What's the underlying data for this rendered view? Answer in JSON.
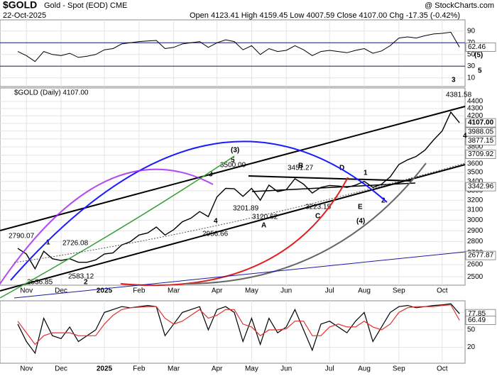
{
  "header": {
    "symbol": "$GOLD",
    "name": "Gold - Spot (EOD) CME",
    "date": "22-Oct-2025",
    "quote": "Open 4123.41 High 4159.45 Low 4007.59 Close 4107.00 Chg -17.35 (-0.42%)",
    "source": "@ StockCharts.com"
  },
  "chart_data": [
    {
      "type": "line",
      "color": "#000000",
      "categories": [
        null,
        "Nov",
        null,
        null,
        null,
        "Dec",
        null,
        null,
        null,
        null,
        "2025",
        null,
        null,
        null,
        "Feb",
        null,
        null,
        null,
        "Mar",
        null,
        null,
        null,
        null,
        "Apr",
        null,
        null,
        null,
        "May",
        null,
        null,
        null,
        "Jun",
        null,
        null,
        null,
        null,
        "Jul",
        null,
        null,
        null,
        "Aug",
        null,
        null,
        null,
        "Sep",
        null,
        null,
        null,
        null,
        "Oct",
        null,
        null
      ],
      "values": [
        55,
        48,
        38,
        55,
        50,
        48,
        52,
        45,
        47,
        50,
        58,
        60,
        68,
        70,
        72,
        73,
        74,
        60,
        62,
        68,
        70,
        72,
        62,
        70,
        75,
        72,
        58,
        65,
        50,
        60,
        55,
        57,
        65,
        58,
        48,
        55,
        57,
        55,
        53,
        57,
        60,
        52,
        56,
        65,
        78,
        80,
        78,
        82,
        85,
        86,
        88,
        62.46
      ],
      "value_labels": [
        null,
        null,
        null,
        null,
        null,
        null,
        null,
        null,
        null,
        null,
        null,
        null,
        null,
        null,
        null,
        null,
        null,
        null,
        null,
        null,
        null,
        null,
        null,
        null,
        null,
        null,
        null,
        null,
        null,
        null,
        null,
        null,
        null,
        null,
        null,
        null,
        null,
        null,
        null,
        null,
        null,
        null,
        null,
        null,
        null,
        null,
        null,
        null,
        null,
        null,
        null,
        "62.46"
      ],
      "ylim": [
        0,
        100
      ],
      "yticks": [
        10,
        30,
        50,
        70,
        90
      ]
    },
    {
      "type": "line",
      "color": "#000000",
      "log": true,
      "legend": "$GOLD (Daily) 4107.00",
      "categories": [
        null,
        "Nov",
        null,
        null,
        null,
        "Dec",
        null,
        null,
        null,
        null,
        "2025",
        null,
        null,
        null,
        "Feb",
        null,
        null,
        null,
        "Mar",
        null,
        null,
        null,
        null,
        "Apr",
        null,
        null,
        null,
        "May",
        null,
        null,
        null,
        "Jun",
        null,
        null,
        null,
        null,
        "Jul",
        null,
        null,
        null,
        "Aug",
        null,
        null,
        null,
        "Sep",
        null,
        null,
        null,
        null,
        "Oct",
        null,
        null
      ],
      "values": [
        2740,
        2690,
        2565,
        2715,
        2650,
        2635,
        2650,
        2620,
        2620,
        2640,
        2690,
        2700,
        2770,
        2800,
        2860,
        2880,
        2935,
        2860,
        2910,
        2985,
        3020,
        3085,
        3035,
        3235,
        3325,
        3320,
        3240,
        3325,
        3200,
        3360,
        3290,
        3310,
        3430,
        3370,
        3275,
        3335,
        3355,
        3350,
        3335,
        3360,
        3400,
        3335,
        3370,
        3450,
        3590,
        3645,
        3685,
        3760,
        3885,
        4000,
        4250,
        4107
      ],
      "ylim": [
        2450,
        4450
      ],
      "yticks": [
        2500,
        2600,
        2700,
        2800,
        2900,
        3000,
        3100,
        3200,
        3300,
        3400,
        3500,
        3600,
        3700,
        3800,
        3900,
        4000,
        4100,
        4200,
        4300,
        4400
      ],
      "price_labels": [
        {
          "value": 4107,
          "label": "4107.00"
        },
        {
          "value": 3988.05,
          "label": "3988.05"
        },
        {
          "value": 3877.15,
          "label": "3877.15"
        },
        {
          "value": 3709.92,
          "label": "3709.92"
        },
        {
          "value": 3342.96,
          "label": "3342.96"
        },
        {
          "value": 2677.87,
          "label": "2677.87"
        }
      ],
      "annotations": [
        {
          "text": "(3)",
          "color": "#000000"
        },
        {
          "text": "5",
          "color": "#9932cc"
        },
        {
          "text": "3",
          "color": "#9932cc"
        },
        {
          "text": "4",
          "color": "#9932cc"
        },
        {
          "text": "1",
          "color": "#9932cc"
        },
        {
          "text": "2",
          "color": "#9932cc"
        },
        {
          "text": "A",
          "color": "#9932cc"
        },
        {
          "text": "B",
          "color": "#9932cc"
        },
        {
          "text": "C",
          "color": "#9932cc"
        },
        {
          "text": "D",
          "color": "#9932cc"
        },
        {
          "text": "E",
          "color": "#9932cc"
        },
        {
          "text": "1",
          "color": "#9932cc"
        },
        {
          "text": "2",
          "color": "#808080"
        },
        {
          "text": "(4)",
          "color": "#000000"
        },
        {
          "text": "3",
          "color": "#808080"
        },
        {
          "text": "4",
          "color": "#808080"
        },
        {
          "text": "(5)",
          "color": "#000000"
        },
        {
          "text": "5",
          "color": "#808080"
        },
        {
          "text": "2790.07",
          "color": "#000000"
        },
        {
          "text": "2726.08",
          "color": "#000000"
        },
        {
          "text": "2536.85",
          "color": "#000000"
        },
        {
          "text": "2583.12",
          "color": "#000000"
        },
        {
          "text": "3500.00",
          "color": "#000000"
        },
        {
          "text": "3201.89",
          "color": "#000000"
        },
        {
          "text": "3120.62",
          "color": "#000000"
        },
        {
          "text": "2956.66",
          "color": "#000000"
        },
        {
          "text": "3451.27",
          "color": "#000000"
        },
        {
          "text": "3223.15",
          "color": "#000000"
        },
        {
          "text": "4381.58",
          "color": "#000000"
        }
      ]
    },
    {
      "type": "line",
      "categories": [
        null,
        "Nov",
        null,
        null,
        null,
        "Dec",
        null,
        null,
        null,
        null,
        "2025",
        null,
        null,
        null,
        "Feb",
        null,
        null,
        null,
        "Mar",
        null,
        null,
        null,
        null,
        "Apr",
        null,
        null,
        null,
        "May",
        null,
        null,
        null,
        "Jun",
        null,
        null,
        null,
        null,
        "Jul",
        null,
        null,
        null,
        "Aug",
        null,
        null,
        null,
        "Sep",
        null,
        null,
        null,
        null,
        "Oct",
        null,
        null
      ],
      "series": [
        {
          "color": "#000000",
          "values": [
            60,
            30,
            10,
            70,
            40,
            35,
            55,
            30,
            40,
            50,
            80,
            85,
            90,
            88,
            90,
            92,
            90,
            40,
            60,
            80,
            85,
            90,
            50,
            85,
            90,
            80,
            30,
            70,
            25,
            70,
            45,
            55,
            85,
            50,
            15,
            60,
            65,
            55,
            45,
            65,
            80,
            30,
            55,
            80,
            90,
            92,
            88,
            90,
            92,
            93,
            95,
            77.85
          ],
          "value_labels": [
            null,
            null,
            null,
            null,
            null,
            null,
            null,
            null,
            null,
            null,
            null,
            null,
            null,
            null,
            null,
            null,
            null,
            null,
            null,
            null,
            null,
            null,
            null,
            null,
            null,
            null,
            null,
            null,
            null,
            null,
            null,
            null,
            null,
            null,
            null,
            null,
            null,
            null,
            null,
            null,
            null,
            null,
            null,
            null,
            null,
            null,
            null,
            null,
            null,
            null,
            null,
            "77.85"
          ]
        },
        {
          "color": "#e03030",
          "values": [
            65,
            45,
            25,
            40,
            45,
            45,
            45,
            40,
            40,
            40,
            60,
            75,
            85,
            88,
            89,
            90,
            90,
            70,
            60,
            65,
            75,
            85,
            70,
            75,
            85,
            85,
            60,
            55,
            40,
            50,
            50,
            52,
            65,
            65,
            40,
            40,
            55,
            60,
            55,
            55,
            65,
            55,
            50,
            60,
            80,
            88,
            90,
            90,
            90,
            92,
            93,
            66.49
          ],
          "value_labels": [
            null,
            null,
            null,
            null,
            null,
            null,
            null,
            null,
            null,
            null,
            null,
            null,
            null,
            null,
            null,
            null,
            null,
            null,
            null,
            null,
            null,
            null,
            null,
            null,
            null,
            null,
            null,
            null,
            null,
            null,
            null,
            null,
            null,
            null,
            null,
            null,
            null,
            null,
            null,
            null,
            null,
            null,
            null,
            null,
            null,
            null,
            null,
            null,
            null,
            null,
            null,
            "66.49"
          ]
        }
      ],
      "ylim": [
        0,
        100
      ],
      "yticks": [
        20,
        50,
        80
      ]
    }
  ]
}
